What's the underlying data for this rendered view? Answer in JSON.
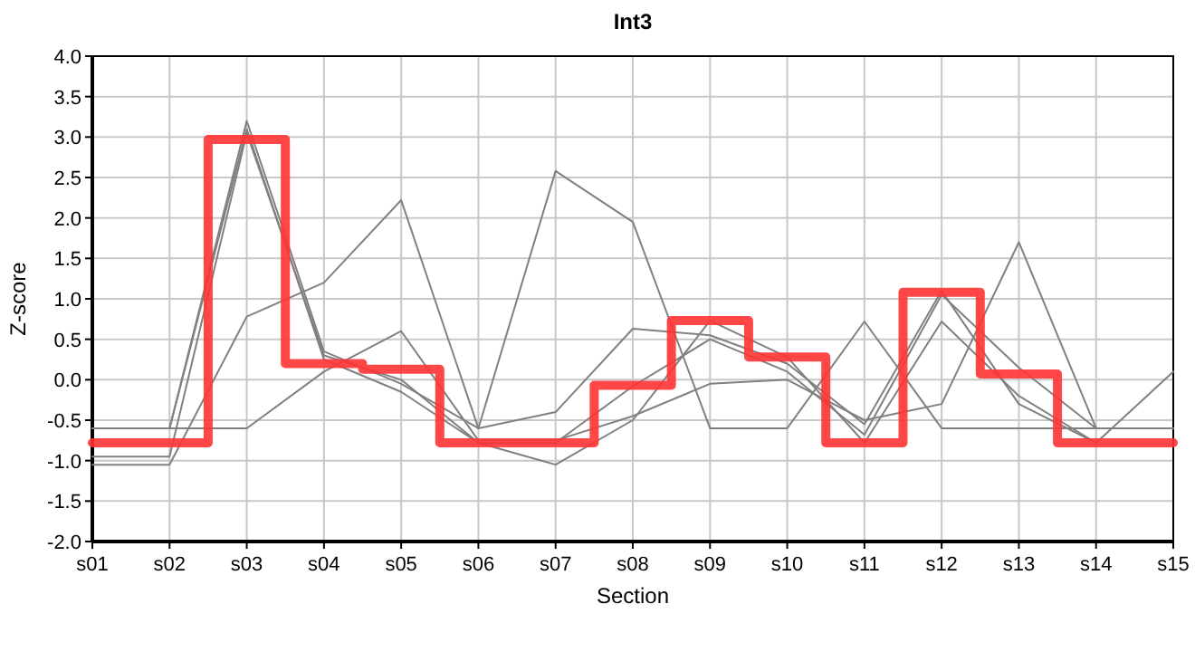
{
  "chart_data": {
    "type": "line",
    "title": "Int3",
    "xlabel": "Section",
    "ylabel": "Z-score",
    "categories": [
      "s01",
      "s02",
      "s03",
      "s04",
      "s05",
      "s06",
      "s07",
      "s08",
      "s09",
      "s10",
      "s11",
      "s12",
      "s13",
      "s14",
      "s15"
    ],
    "ylim": [
      -2,
      4
    ],
    "yticks": [
      {
        "value": -2,
        "label": "-2.0"
      },
      {
        "value": -1.5,
        "label": "-1.5"
      },
      {
        "value": -1,
        "label": "-1.0"
      },
      {
        "value": -0.5,
        "label": "-0.5"
      },
      {
        "value": 0,
        "label": "0.0"
      },
      {
        "value": 0.5,
        "label": "0.5"
      },
      {
        "value": 1,
        "label": "1.0"
      },
      {
        "value": 1.5,
        "label": "1.5"
      },
      {
        "value": 2,
        "label": "2.0"
      },
      {
        "value": 2.5,
        "label": "2.5"
      },
      {
        "value": 3,
        "label": "3.0"
      },
      {
        "value": 3.5,
        "label": "3.5"
      },
      {
        "value": 4,
        "label": "4.0"
      }
    ],
    "grid": true,
    "marker": "none",
    "series": [
      {
        "color": "#808080",
        "values": [
          -0.6,
          -0.6,
          3.2,
          0.35,
          -0.05,
          -0.6,
          2.58,
          1.95,
          -0.6,
          -0.6,
          0.72,
          -0.6,
          -0.6,
          -0.6,
          -0.6
        ]
      },
      {
        "color": "#808080",
        "values": [
          -1.05,
          -1.05,
          0.78,
          1.2,
          2.22,
          -0.6,
          -0.4,
          0.63,
          0.55,
          0.2,
          -0.55,
          1.1,
          -0.3,
          -0.78,
          0.1
        ]
      },
      {
        "color": "#808080",
        "values": [
          -0.6,
          -0.6,
          -0.6,
          0.1,
          0.6,
          -0.75,
          -0.75,
          -0.45,
          -0.05,
          0.0,
          -0.5,
          -0.3,
          1.7,
          -0.6,
          -0.6
        ]
      },
      {
        "color": "#808080",
        "values": [
          -0.95,
          -0.95,
          3.05,
          0.3,
          0.0,
          -0.78,
          -1.05,
          -0.5,
          0.73,
          0.28,
          -0.78,
          0.72,
          -0.2,
          -0.78,
          null
        ]
      },
      {
        "color": "#808080",
        "values": [
          -0.6,
          -0.6,
          3.1,
          0.25,
          -0.15,
          -0.78,
          -0.78,
          -0.08,
          0.5,
          0.1,
          -0.68,
          1.05,
          0.15,
          -0.6,
          -0.6
        ]
      },
      {
        "type": "step",
        "color": "#ff3333",
        "values": [
          -0.78,
          -0.78,
          2.97,
          0.2,
          0.13,
          -0.78,
          -0.78,
          -0.07,
          0.73,
          0.28,
          -0.78,
          1.08,
          0.07,
          -0.78,
          -0.78
        ]
      }
    ]
  }
}
